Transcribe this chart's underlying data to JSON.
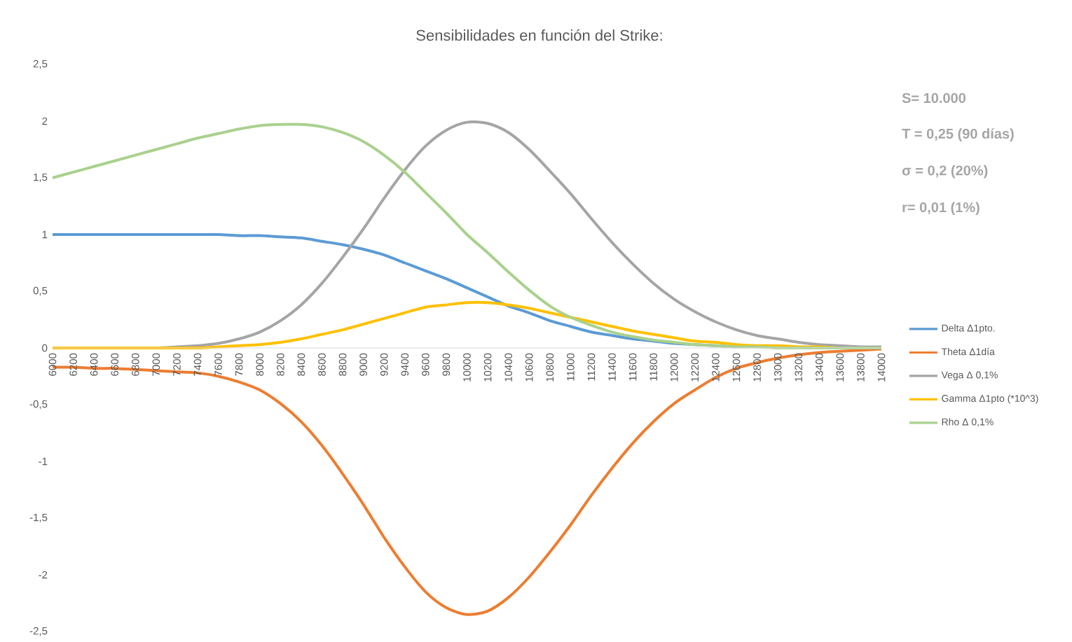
{
  "chart_data": {
    "type": "line",
    "title": "Sensibilidades en función del Strike:",
    "categories": [
      "6000",
      "6200",
      "6400",
      "6600",
      "6800",
      "7000",
      "7200",
      "7400",
      "7600",
      "7800",
      "8000",
      "8200",
      "8400",
      "8600",
      "8800",
      "9000",
      "9200",
      "9400",
      "9600",
      "9800",
      "10000",
      "10200",
      "10400",
      "10600",
      "10800",
      "11000",
      "11200",
      "11400",
      "11600",
      "11800",
      "12000",
      "12200",
      "12400",
      "12600",
      "12800",
      "13000",
      "13200",
      "13400",
      "13600",
      "13800",
      "14000"
    ],
    "series": [
      {
        "name": "Delta Δ1pto.",
        "color": "#5b9bd5",
        "values": [
          1,
          1,
          1,
          1,
          1,
          1,
          1,
          1,
          1,
          0.99,
          0.99,
          0.98,
          0.97,
          0.94,
          0.91,
          0.87,
          0.82,
          0.75,
          0.68,
          0.61,
          0.53,
          0.45,
          0.37,
          0.31,
          0.24,
          0.19,
          0.14,
          0.11,
          0.08,
          0.06,
          0.04,
          0.03,
          0.02,
          0.01,
          null,
          null,
          null,
          null,
          null,
          null,
          null
        ]
      },
      {
        "name": "Theta Δ1día",
        "color": "#ed7d31",
        "values": [
          -0.17,
          -0.17,
          -0.18,
          -0.18,
          -0.19,
          -0.2,
          -0.21,
          -0.22,
          -0.25,
          -0.3,
          -0.37,
          -0.49,
          -0.65,
          -0.86,
          -1.11,
          -1.38,
          -1.67,
          -1.93,
          -2.15,
          -2.29,
          -2.35,
          -2.32,
          -2.2,
          -2.02,
          -1.8,
          -1.56,
          -1.3,
          -1.06,
          -0.84,
          -0.65,
          -0.49,
          -0.37,
          -0.26,
          -0.18,
          -0.13,
          -0.09,
          -0.06,
          -0.04,
          -0.03,
          -0.02,
          -0.01
        ]
      },
      {
        "name": "Vega Δ 0,1%",
        "color": "#a5a5a5",
        "values": [
          null,
          null,
          null,
          null,
          0,
          0,
          0.01,
          0.02,
          0.04,
          0.08,
          0.14,
          0.24,
          0.38,
          0.57,
          0.8,
          1.05,
          1.32,
          1.57,
          1.78,
          1.92,
          1.99,
          1.98,
          1.9,
          1.75,
          1.56,
          1.36,
          1.14,
          0.93,
          0.74,
          0.57,
          0.43,
          0.32,
          0.23,
          0.16,
          0.11,
          0.08,
          0.05,
          0.03,
          0.02,
          0.01,
          0.01
        ]
      },
      {
        "name": "Gamma Δ1pto (*10^3)",
        "color": "#ffc000",
        "values": [
          0,
          0,
          0,
          0,
          0,
          0,
          0,
          0,
          0.01,
          0.02,
          0.03,
          0.05,
          0.08,
          0.12,
          0.16,
          0.21,
          0.26,
          0.31,
          0.36,
          0.38,
          0.4,
          0.4,
          0.38,
          0.35,
          0.31,
          0.27,
          0.23,
          0.19,
          0.15,
          0.12,
          0.09,
          0.06,
          0.05,
          0.03,
          0.02,
          0.02,
          0.01,
          0.01,
          0,
          0,
          0
        ]
      },
      {
        "name": "Rho Δ 0,1%",
        "color": "#a9d18e",
        "values": [
          1.5,
          1.55,
          1.6,
          1.65,
          1.7,
          1.75,
          1.8,
          1.85,
          1.89,
          1.93,
          1.96,
          1.97,
          1.97,
          1.95,
          1.9,
          1.82,
          1.7,
          1.55,
          1.37,
          1.19,
          1.0,
          0.84,
          0.67,
          0.51,
          0.37,
          0.27,
          0.2,
          0.14,
          0.1,
          0.07,
          0.05,
          0.03,
          0.02,
          0.01,
          0.01,
          0,
          0,
          0,
          0,
          0,
          0
        ]
      }
    ],
    "ylim": [
      -2.5,
      2.5
    ],
    "yticks": [
      {
        "value": -2.5,
        "label": "-2,5"
      },
      -2,
      {
        "value": -1.5,
        "label": "-1,5"
      },
      -1,
      {
        "value": -0.5,
        "label": "-0,5"
      },
      0,
      {
        "value": 0.5,
        "label": "0,5"
      },
      1,
      {
        "value": 1.5,
        "label": "1,5"
      },
      2,
      {
        "value": 2.5,
        "label": "2,5"
      }
    ],
    "legend": "right",
    "annotations": [
      "S= 10.000",
      "T = 0,25 (90 días)",
      "σ = 0,2 (20%)",
      "r= 0,01 (1%)"
    ]
  }
}
